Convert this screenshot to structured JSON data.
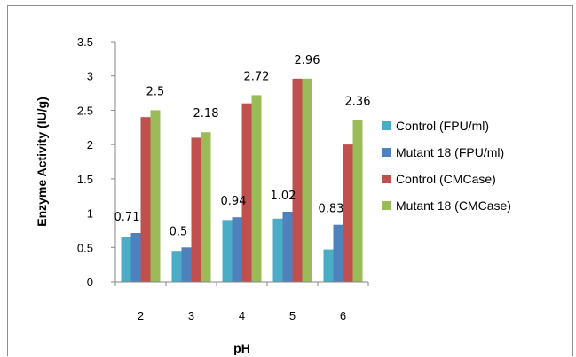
{
  "chart_data": {
    "type": "bar",
    "title": "",
    "xlabel": "pH",
    "ylabel": "Enzyme Activity (IU/g)",
    "categories": [
      "2",
      "3",
      "4",
      "5",
      "6"
    ],
    "ylim": [
      0,
      3.5
    ],
    "yticks": [
      "0",
      "0.5",
      "1",
      "1.5",
      "2",
      "2.5",
      "3",
      "3.5"
    ],
    "grid": false,
    "legend_position": "right",
    "series": [
      {
        "name": "Control (FPU/ml)",
        "color": "#4bacc6",
        "values": [
          0.65,
          0.45,
          0.9,
          0.92,
          0.47
        ]
      },
      {
        "name": "Mutant 18 (FPU/ml)",
        "color": "#4f81bd",
        "values": [
          0.71,
          0.5,
          0.94,
          1.02,
          0.83
        ]
      },
      {
        "name": "Control (CMCase)",
        "color": "#c0504d",
        "values": [
          2.4,
          2.1,
          2.6,
          2.96,
          2.0
        ]
      },
      {
        "name": "Mutant 18 (CMCase)",
        "color": "#9bbb59",
        "values": [
          2.5,
          2.18,
          2.72,
          2.96,
          2.36
        ]
      }
    ],
    "annotations": [
      {
        "category": "2",
        "text": "0.71"
      },
      {
        "category": "3",
        "text": "0.5"
      },
      {
        "category": "4",
        "text": "0.94"
      },
      {
        "category": "5",
        "text": "1.02"
      },
      {
        "category": "6",
        "text": "0.83"
      },
      {
        "category": "2",
        "text": "2.5"
      },
      {
        "category": "3",
        "text": "2.18"
      },
      {
        "category": "4",
        "text": "2.72"
      },
      {
        "category": "5",
        "text": "2.96"
      },
      {
        "category": "6",
        "text": "2.36"
      }
    ]
  }
}
